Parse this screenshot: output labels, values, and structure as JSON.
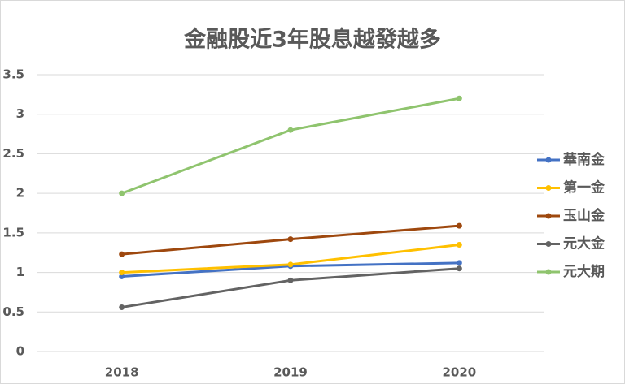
{
  "chart_data": {
    "type": "line",
    "title": "金融股近3年股息越發越多",
    "categories": [
      "2018",
      "2019",
      "2020"
    ],
    "series": [
      {
        "name": "華南金",
        "color": "#4472c4",
        "values": [
          0.95,
          1.08,
          1.12
        ]
      },
      {
        "name": "第一金",
        "color": "#ffc000",
        "values": [
          1.0,
          1.1,
          1.35
        ]
      },
      {
        "name": "玉山金",
        "color": "#9e480e",
        "values": [
          1.23,
          1.42,
          1.59
        ]
      },
      {
        "name": "元大金",
        "color": "#636363",
        "values": [
          0.56,
          0.9,
          1.05
        ]
      },
      {
        "name": "元大期",
        "color": "#8fc46e",
        "values": [
          2.0,
          2.8,
          3.2
        ]
      }
    ],
    "ylim": [
      0,
      3.5
    ],
    "yticks": [
      0,
      0.5,
      1,
      1.5,
      2,
      2.5,
      3,
      3.5
    ],
    "grid": true,
    "legend": "right"
  }
}
